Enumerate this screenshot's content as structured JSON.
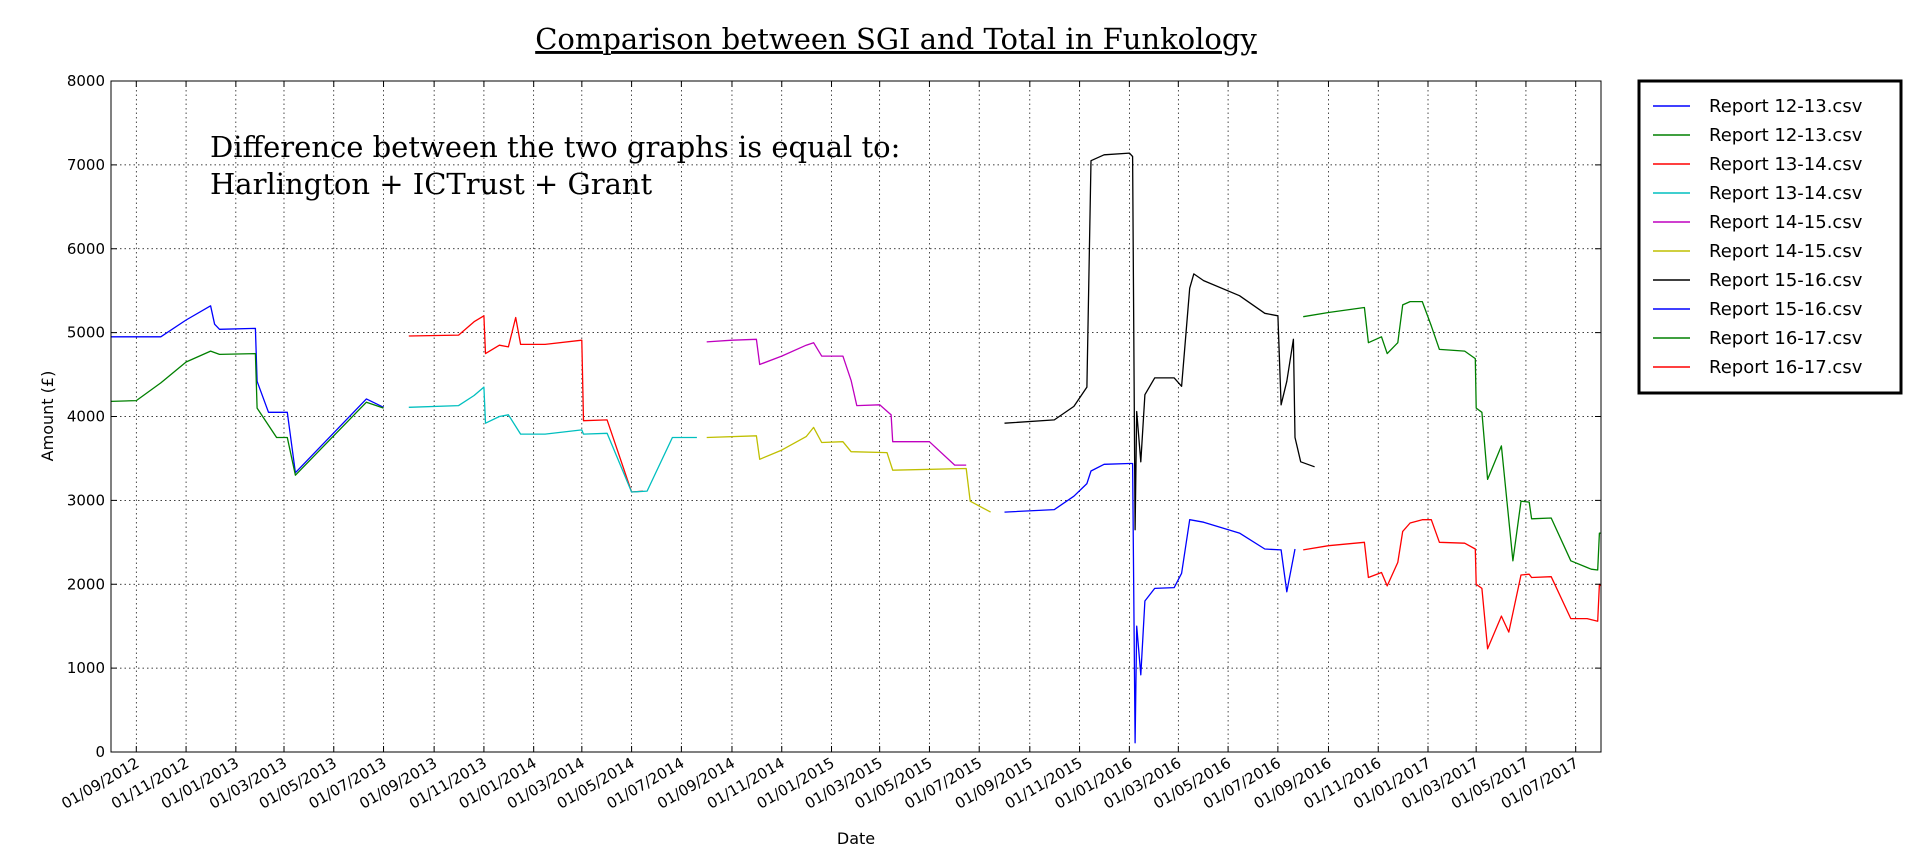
{
  "chart_data": {
    "type": "line",
    "title": "Comparison between SGI and Total in Funkology",
    "annotation": [
      "Difference between the two graphs is equal to:",
      "Harlington + ICTrust + Grant"
    ],
    "xlabel": "Date",
    "ylabel": "Amount (£)",
    "xlim": [
      "2012-08-01",
      "2017-08-01"
    ],
    "ylim": [
      0,
      8000
    ],
    "y_ticks": [
      0,
      1000,
      2000,
      3000,
      4000,
      5000,
      6000,
      7000,
      8000
    ],
    "x_ticks": [
      "01/09/2012",
      "01/11/2012",
      "01/01/2013",
      "01/03/2013",
      "01/05/2013",
      "01/07/2013",
      "01/09/2013",
      "01/11/2013",
      "01/01/2014",
      "01/03/2014",
      "01/05/2014",
      "01/07/2014",
      "01/09/2014",
      "01/11/2014",
      "01/01/2015",
      "01/03/2015",
      "01/05/2015",
      "01/07/2015",
      "01/09/2015",
      "01/11/2015",
      "01/01/2016",
      "01/03/2016",
      "01/05/2016",
      "01/07/2016",
      "01/09/2016",
      "01/11/2016",
      "01/01/2017",
      "01/03/2017",
      "01/05/2017",
      "01/07/2017"
    ],
    "grid": true,
    "legend_position": "outside-right",
    "series": [
      {
        "name": "Report 12-13.csv",
        "color": "#0000ff",
        "points": [
          [
            "2012-08-01",
            4950
          ],
          [
            "2012-10-01",
            4950
          ],
          [
            "2012-11-01",
            5150
          ],
          [
            "2012-12-01",
            5320
          ],
          [
            "2012-12-06",
            5100
          ],
          [
            "2012-12-12",
            5040
          ],
          [
            "2013-01-25",
            5050
          ],
          [
            "2013-01-27",
            4420
          ],
          [
            "2013-02-10",
            4050
          ],
          [
            "2013-03-05",
            4050
          ],
          [
            "2013-03-15",
            3330
          ],
          [
            "2013-06-10",
            4210
          ],
          [
            "2013-07-01",
            4110
          ]
        ]
      },
      {
        "name": "Report 12-13.csv",
        "color": "#008000",
        "points": [
          [
            "2012-08-01",
            4180
          ],
          [
            "2012-09-01",
            4190
          ],
          [
            "2012-10-01",
            4400
          ],
          [
            "2012-11-01",
            4650
          ],
          [
            "2012-12-01",
            4780
          ],
          [
            "2012-12-12",
            4740
          ],
          [
            "2013-01-25",
            4750
          ],
          [
            "2013-01-27",
            4100
          ],
          [
            "2013-02-20",
            3750
          ],
          [
            "2013-03-05",
            3750
          ],
          [
            "2013-03-15",
            3300
          ],
          [
            "2013-06-10",
            4170
          ],
          [
            "2013-07-01",
            4100
          ]
        ]
      },
      {
        "name": "Report 13-14.csv",
        "color": "#ff0000",
        "points": [
          [
            "2013-08-01",
            4960
          ],
          [
            "2013-10-01",
            4970
          ],
          [
            "2013-10-20",
            5130
          ],
          [
            "2013-11-01",
            5200
          ],
          [
            "2013-11-03",
            4750
          ],
          [
            "2013-11-20",
            4850
          ],
          [
            "2013-12-01",
            4830
          ],
          [
            "2013-12-10",
            5180
          ],
          [
            "2013-12-16",
            4860
          ],
          [
            "2014-01-15",
            4860
          ],
          [
            "2014-03-01",
            4910
          ],
          [
            "2014-03-03",
            3950
          ],
          [
            "2014-04-01",
            3960
          ],
          [
            "2014-05-01",
            3100
          ],
          [
            "2014-05-15",
            3110
          ]
        ]
      },
      {
        "name": "Report 13-14.csv",
        "color": "#00bfbf",
        "points": [
          [
            "2013-08-01",
            4110
          ],
          [
            "2013-10-01",
            4130
          ],
          [
            "2013-10-20",
            4250
          ],
          [
            "2013-11-01",
            4350
          ],
          [
            "2013-11-03",
            3920
          ],
          [
            "2013-11-20",
            4000
          ],
          [
            "2013-12-01",
            4020
          ],
          [
            "2013-12-16",
            3790
          ],
          [
            "2014-01-15",
            3790
          ],
          [
            "2014-03-01",
            3840
          ],
          [
            "2014-03-03",
            3790
          ],
          [
            "2014-04-01",
            3800
          ],
          [
            "2014-05-01",
            3100
          ],
          [
            "2014-05-20",
            3110
          ],
          [
            "2014-06-20",
            3750
          ],
          [
            "2014-07-20",
            3750
          ]
        ]
      },
      {
        "name": "Report 14-15.csv",
        "color": "#bf00bf",
        "points": [
          [
            "2014-08-01",
            4890
          ],
          [
            "2014-09-01",
            4910
          ],
          [
            "2014-10-01",
            4920
          ],
          [
            "2014-10-05",
            4620
          ],
          [
            "2014-11-01",
            4720
          ],
          [
            "2014-12-01",
            4850
          ],
          [
            "2014-12-10",
            4880
          ],
          [
            "2014-12-20",
            4720
          ],
          [
            "2015-01-15",
            4720
          ],
          [
            "2015-01-25",
            4430
          ],
          [
            "2015-02-01",
            4130
          ],
          [
            "2015-03-01",
            4140
          ],
          [
            "2015-03-15",
            4020
          ],
          [
            "2015-03-17",
            3700
          ],
          [
            "2015-05-01",
            3700
          ],
          [
            "2015-06-01",
            3420
          ],
          [
            "2015-06-15",
            3420
          ]
        ]
      },
      {
        "name": "Report 14-15.csv",
        "color": "#bfbf00",
        "points": [
          [
            "2014-08-01",
            3750
          ],
          [
            "2014-10-01",
            3770
          ],
          [
            "2014-10-05",
            3490
          ],
          [
            "2014-11-01",
            3600
          ],
          [
            "2014-12-01",
            3760
          ],
          [
            "2014-12-10",
            3870
          ],
          [
            "2014-12-20",
            3690
          ],
          [
            "2015-01-15",
            3700
          ],
          [
            "2015-01-25",
            3580
          ],
          [
            "2015-03-10",
            3570
          ],
          [
            "2015-03-17",
            3360
          ],
          [
            "2015-06-15",
            3380
          ],
          [
            "2015-06-20",
            2990
          ],
          [
            "2015-07-15",
            2860
          ]
        ]
      },
      {
        "name": "Report 15-16.csv",
        "color": "#000000",
        "points": [
          [
            "2015-08-01",
            3920
          ],
          [
            "2015-10-01",
            3960
          ],
          [
            "2015-10-25",
            4120
          ],
          [
            "2015-11-10",
            4350
          ],
          [
            "2015-11-15",
            7050
          ],
          [
            "2015-12-01",
            7120
          ],
          [
            "2016-01-01",
            7140
          ],
          [
            "2016-01-05",
            7100
          ],
          [
            "2016-01-08",
            2650
          ],
          [
            "2016-01-10",
            4060
          ],
          [
            "2016-01-15",
            3460
          ],
          [
            "2016-01-20",
            4260
          ],
          [
            "2016-02-01",
            4460
          ],
          [
            "2016-02-25",
            4460
          ],
          [
            "2016-03-05",
            4360
          ],
          [
            "2016-03-15",
            5530
          ],
          [
            "2016-03-20",
            5700
          ],
          [
            "2016-04-01",
            5620
          ],
          [
            "2016-05-15",
            5440
          ],
          [
            "2016-06-15",
            5230
          ],
          [
            "2016-07-01",
            5200
          ],
          [
            "2016-07-05",
            4140
          ],
          [
            "2016-07-12",
            4420
          ],
          [
            "2016-07-20",
            4920
          ],
          [
            "2016-07-22",
            3750
          ],
          [
            "2016-07-29",
            3460
          ],
          [
            "2016-08-15",
            3400
          ]
        ]
      },
      {
        "name": "Report 15-16.csv",
        "color": "#0000ff",
        "points": [
          [
            "2015-08-01",
            2860
          ],
          [
            "2015-10-01",
            2890
          ],
          [
            "2015-10-25",
            3050
          ],
          [
            "2015-11-10",
            3200
          ],
          [
            "2015-11-15",
            3350
          ],
          [
            "2015-12-01",
            3430
          ],
          [
            "2016-01-01",
            3440
          ],
          [
            "2016-01-05",
            3440
          ],
          [
            "2016-01-08",
            110
          ],
          [
            "2016-01-10",
            1500
          ],
          [
            "2016-01-15",
            920
          ],
          [
            "2016-01-20",
            1800
          ],
          [
            "2016-02-01",
            1950
          ],
          [
            "2016-02-25",
            1960
          ],
          [
            "2016-03-05",
            2130
          ],
          [
            "2016-03-15",
            2770
          ],
          [
            "2016-04-01",
            2740
          ],
          [
            "2016-05-15",
            2610
          ],
          [
            "2016-06-15",
            2420
          ],
          [
            "2016-07-05",
            2410
          ],
          [
            "2016-07-12",
            1910
          ],
          [
            "2016-07-22",
            2420
          ]
        ]
      },
      {
        "name": "Report 16-17.csv",
        "color": "#008000",
        "points": [
          [
            "2016-08-01",
            5190
          ],
          [
            "2016-09-01",
            5240
          ],
          [
            "2016-10-15",
            5300
          ],
          [
            "2016-10-20",
            4880
          ],
          [
            "2016-11-05",
            4950
          ],
          [
            "2016-11-12",
            4750
          ],
          [
            "2016-11-25",
            4880
          ],
          [
            "2016-12-01",
            5330
          ],
          [
            "2016-12-10",
            5370
          ],
          [
            "2016-12-25",
            5370
          ],
          [
            "2017-01-05",
            5080
          ],
          [
            "2017-01-15",
            4800
          ],
          [
            "2017-02-15",
            4780
          ],
          [
            "2017-02-28",
            4690
          ],
          [
            "2017-03-01",
            4100
          ],
          [
            "2017-03-08",
            4050
          ],
          [
            "2017-03-15",
            3250
          ],
          [
            "2017-04-01",
            3650
          ],
          [
            "2017-04-15",
            2280
          ],
          [
            "2017-04-25",
            2990
          ],
          [
            "2017-05-05",
            2980
          ],
          [
            "2017-05-08",
            2780
          ],
          [
            "2017-06-01",
            2790
          ],
          [
            "2017-06-25",
            2280
          ],
          [
            "2017-07-15",
            2200
          ],
          [
            "2017-07-20",
            2180
          ],
          [
            "2017-07-28",
            2170
          ],
          [
            "2017-07-30",
            2610
          ],
          [
            "2017-08-01",
            2610
          ]
        ]
      },
      {
        "name": "Report 16-17.csv",
        "color": "#ff0000",
        "points": [
          [
            "2016-08-01",
            2410
          ],
          [
            "2016-09-01",
            2460
          ],
          [
            "2016-10-15",
            2500
          ],
          [
            "2016-10-20",
            2080
          ],
          [
            "2016-11-05",
            2140
          ],
          [
            "2016-11-12",
            1980
          ],
          [
            "2016-11-25",
            2260
          ],
          [
            "2016-12-01",
            2630
          ],
          [
            "2016-12-10",
            2730
          ],
          [
            "2016-12-25",
            2770
          ],
          [
            "2017-01-05",
            2770
          ],
          [
            "2017-01-15",
            2500
          ],
          [
            "2017-02-15",
            2490
          ],
          [
            "2017-02-28",
            2420
          ],
          [
            "2017-03-01",
            2000
          ],
          [
            "2017-03-08",
            1950
          ],
          [
            "2017-03-15",
            1230
          ],
          [
            "2017-04-01",
            1620
          ],
          [
            "2017-04-10",
            1430
          ],
          [
            "2017-04-25",
            2110
          ],
          [
            "2017-05-05",
            2120
          ],
          [
            "2017-05-08",
            2080
          ],
          [
            "2017-06-01",
            2090
          ],
          [
            "2017-06-25",
            1590
          ],
          [
            "2017-07-15",
            1590
          ],
          [
            "2017-07-28",
            1560
          ],
          [
            "2017-07-30",
            2000
          ],
          [
            "2017-08-01",
            1980
          ]
        ]
      }
    ]
  }
}
